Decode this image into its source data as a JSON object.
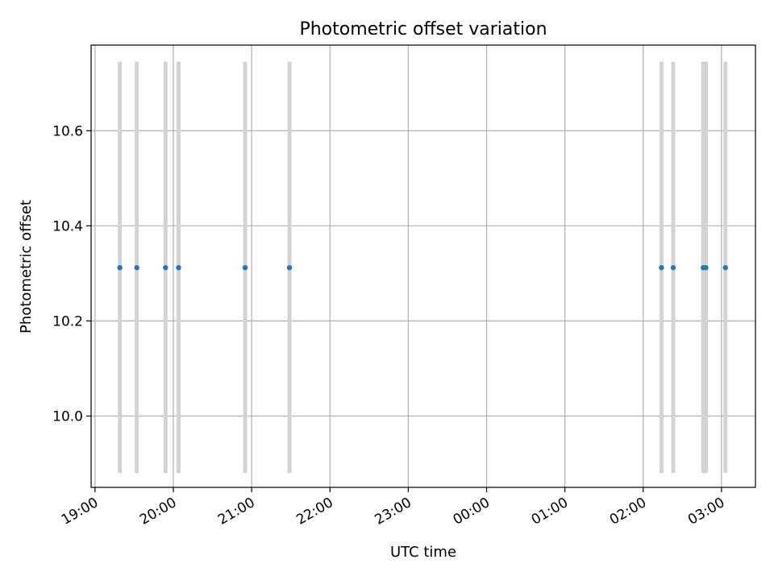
{
  "chart_data": {
    "type": "scatter",
    "title": "Photometric offset variation",
    "xlabel": "UTC time",
    "ylabel": "Photometric offset",
    "x_axis_type": "time",
    "x_date_start": "2000-01-01",
    "xlim": [
      "2000-01-01 18:57",
      "2000-01-02 03:26"
    ],
    "ylim": [
      9.85,
      10.78
    ],
    "x_ticks": [
      {
        "value": "2000-01-01 19:00",
        "label": "19:00"
      },
      {
        "value": "2000-01-01 20:00",
        "label": "20:00"
      },
      {
        "value": "2000-01-01 21:00",
        "label": "21:00"
      },
      {
        "value": "2000-01-01 22:00",
        "label": "22:00"
      },
      {
        "value": "2000-01-01 23:00",
        "label": "23:00"
      },
      {
        "value": "2000-01-02 00:00",
        "label": "00:00"
      },
      {
        "value": "2000-01-02 01:00",
        "label": "01:00"
      },
      {
        "value": "2000-01-02 02:00",
        "label": "02:00"
      },
      {
        "value": "2000-01-02 03:00",
        "label": "03:00"
      }
    ],
    "y_ticks": [
      {
        "value": 10.0,
        "label": "10.0"
      },
      {
        "value": 10.2,
        "label": "10.2"
      },
      {
        "value": 10.4,
        "label": "10.4"
      },
      {
        "value": 10.6,
        "label": "10.6"
      }
    ],
    "grid": true,
    "series": [
      {
        "color": "#1f77b4",
        "x": [
          "2000-01-01 19:19",
          "2000-01-01 19:32",
          "2000-01-01 19:54",
          "2000-01-01 20:04",
          "2000-01-01 20:55",
          "2000-01-01 21:29",
          "2000-01-02 02:14",
          "2000-01-02 02:23",
          "2000-01-02 02:46",
          "2000-01-02 02:48",
          "2000-01-02 03:03"
        ],
        "y": [
          10.312,
          10.312,
          10.312,
          10.312,
          10.312,
          10.312,
          10.312,
          10.312,
          10.312,
          10.312,
          10.312
        ]
      }
    ],
    "interval_bars": {
      "color": "#d3d3d3",
      "x": [
        "2000-01-01 19:19",
        "2000-01-01 19:32",
        "2000-01-01 19:54",
        "2000-01-01 20:04",
        "2000-01-01 20:55",
        "2000-01-01 21:29",
        "2000-01-02 02:14",
        "2000-01-02 02:23",
        "2000-01-02 02:46",
        "2000-01-02 02:48",
        "2000-01-02 03:03"
      ],
      "y_range": [
        9.88,
        10.745
      ]
    }
  }
}
